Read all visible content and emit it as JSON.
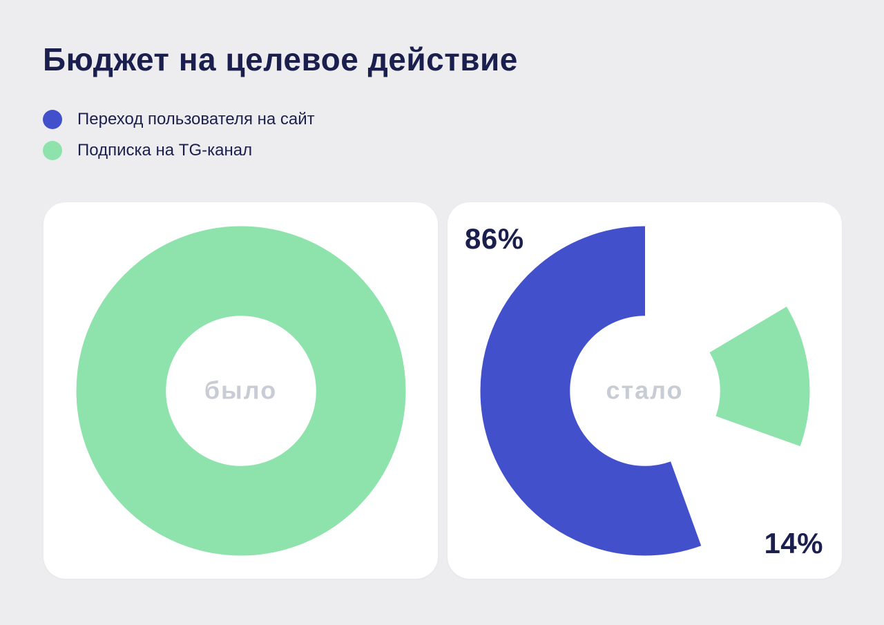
{
  "title": "Бюджет на целевое действие",
  "colors": {
    "background": "#ededef",
    "card": "#ffffff",
    "heading_navy": "#1b1f4e",
    "accent_blue": "#4350cc",
    "accent_green": "#8de3ab",
    "center_label_gray": "#c8ccd4"
  },
  "legend": {
    "items": [
      {
        "label": "Переход пользователя на сайт",
        "color": "#4350cc"
      },
      {
        "label": "Подписка на TG-канал",
        "color": "#8de3ab"
      }
    ]
  },
  "chart_data": [
    {
      "type": "pie",
      "donut": true,
      "center_label": "было",
      "start_angle": 0,
      "segments": [
        {
          "name": "Подписка на TG-канал",
          "value": 100,
          "color": "#8de3ab",
          "label": ""
        }
      ]
    },
    {
      "type": "pie",
      "donut": true,
      "center_label": "стало",
      "start_angle": 160,
      "segments": [
        {
          "name": "Переход пользователя на сайт",
          "value": 86,
          "color": "#4350cc",
          "label": "86%"
        },
        {
          "name": "Подписка на TG-канал",
          "value": 14,
          "color": "#8de3ab",
          "label": "14%"
        }
      ]
    }
  ]
}
